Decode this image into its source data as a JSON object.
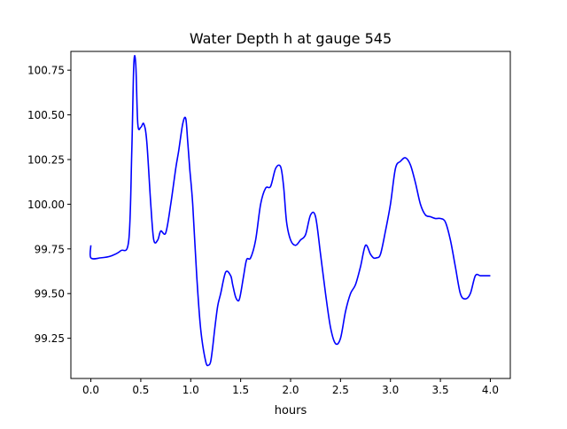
{
  "chart_data": {
    "type": "line",
    "title": "Water Depth h at gauge 545",
    "xlabel": "hours",
    "ylabel": "",
    "xlim": [
      -0.2,
      4.2
    ],
    "ylim": [
      99.025,
      100.855
    ],
    "grid": false,
    "x_ticks": [
      0.0,
      0.5,
      1.0,
      1.5,
      2.0,
      2.5,
      3.0,
      3.5,
      4.0
    ],
    "x_tick_labels": [
      "0.0",
      "0.5",
      "1.0",
      "1.5",
      "2.0",
      "2.5",
      "3.0",
      "3.5",
      "4.0"
    ],
    "y_ticks": [
      99.25,
      99.5,
      99.75,
      100.0,
      100.25,
      100.5,
      100.75
    ],
    "y_tick_labels": [
      "99.25",
      "99.50",
      "99.75",
      "100.00",
      "100.25",
      "100.50",
      "100.75"
    ],
    "series": [
      {
        "color": "#0000ff",
        "x": [
          0.0,
          0.0,
          0.1,
          0.2,
          0.3,
          0.38,
          0.41,
          0.43,
          0.45,
          0.47,
          0.5,
          0.53,
          0.56,
          0.6,
          0.63,
          0.67,
          0.7,
          0.75,
          0.8,
          0.85,
          0.88,
          0.92,
          0.95,
          0.97,
          0.99,
          1.02,
          1.06,
          1.1,
          1.15,
          1.18,
          1.2,
          1.22,
          1.24,
          1.27,
          1.3,
          1.35,
          1.4,
          1.42,
          1.45,
          1.48,
          1.5,
          1.53,
          1.56,
          1.6,
          1.65,
          1.7,
          1.75,
          1.8,
          1.85,
          1.9,
          1.93,
          1.96,
          2.0,
          2.05,
          2.1,
          2.15,
          2.2,
          2.25,
          2.3,
          2.35,
          2.4,
          2.45,
          2.5,
          2.55,
          2.6,
          2.65,
          2.7,
          2.75,
          2.8,
          2.83,
          2.86,
          2.9,
          2.95,
          3.0,
          3.05,
          3.1,
          3.15,
          3.2,
          3.25,
          3.3,
          3.35,
          3.4,
          3.45,
          3.5,
          3.55,
          3.6,
          3.65,
          3.7,
          3.75,
          3.8,
          3.85,
          3.9,
          3.95,
          4.0
        ],
        "y": [
          99.77,
          99.7,
          99.7,
          99.71,
          99.74,
          99.8,
          100.3,
          100.78,
          100.78,
          100.45,
          100.43,
          100.45,
          100.35,
          100.0,
          99.8,
          99.8,
          99.85,
          99.84,
          100.0,
          100.2,
          100.3,
          100.45,
          100.48,
          100.35,
          100.2,
          100.0,
          99.6,
          99.3,
          99.12,
          99.1,
          99.12,
          99.2,
          99.3,
          99.43,
          99.5,
          99.62,
          99.6,
          99.55,
          99.48,
          99.46,
          99.5,
          99.6,
          99.69,
          99.7,
          99.8,
          100.0,
          100.09,
          100.1,
          100.2,
          100.21,
          100.1,
          99.9,
          99.8,
          99.77,
          99.8,
          99.83,
          99.94,
          99.93,
          99.72,
          99.5,
          99.31,
          99.22,
          99.25,
          99.4,
          99.5,
          99.55,
          99.65,
          99.77,
          99.72,
          99.7,
          99.7,
          99.72,
          99.85,
          100.0,
          100.2,
          100.24,
          100.26,
          100.22,
          100.12,
          100.0,
          99.94,
          99.93,
          99.92,
          99.92,
          99.9,
          99.8,
          99.65,
          99.5,
          99.47,
          99.5,
          99.6,
          99.6,
          99.6,
          99.6
        ]
      }
    ]
  }
}
